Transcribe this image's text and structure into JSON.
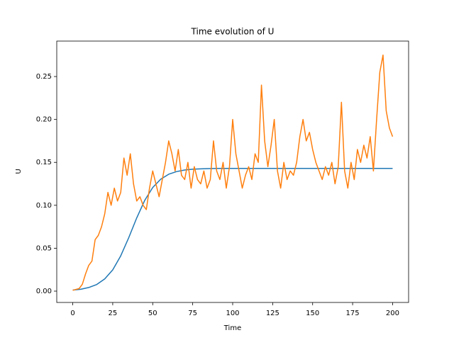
{
  "chart_data": {
    "type": "line",
    "title": "Time evolution of U",
    "x_label": "Time",
    "y_label": "U",
    "xlim": [
      -10,
      210
    ],
    "ylim": [
      -0.0132,
      0.2913
    ],
    "xticks": [
      0,
      25,
      50,
      75,
      100,
      125,
      150,
      175,
      200
    ],
    "yticks": [
      {
        "value": 0,
        "label": "0.00"
      },
      0.05,
      {
        "value": 0.1,
        "label": "0.10"
      },
      0.15,
      {
        "value": 0.2,
        "label": "0.20"
      },
      0.25
    ],
    "series": [
      {
        "color": "#1f77b4",
        "x": [
          0,
          5,
          10,
          15,
          20,
          25,
          30,
          35,
          40,
          45,
          50,
          55,
          60,
          65,
          70,
          75,
          80,
          85,
          90,
          95,
          100,
          105,
          110,
          115,
          120,
          125,
          130,
          135,
          140,
          145,
          150,
          155,
          160,
          165,
          170,
          175,
          180,
          185,
          190,
          195,
          200
        ],
        "values": [
          0.0012,
          0.0022,
          0.0042,
          0.0077,
          0.0142,
          0.0248,
          0.0411,
          0.0622,
          0.0853,
          0.1057,
          0.1207,
          0.1304,
          0.1362,
          0.1393,
          0.1411,
          0.142,
          0.1425,
          0.1428,
          0.143,
          0.143,
          0.143,
          0.143,
          0.143,
          0.143,
          0.143,
          0.143,
          0.143,
          0.143,
          0.143,
          0.143,
          0.143,
          0.143,
          0.143,
          0.143,
          0.143,
          0.143,
          0.143,
          0.143,
          0.143,
          0.143,
          0.143
        ]
      },
      {
        "color": "#ff7f0e",
        "x": [
          0,
          2,
          4,
          6,
          8,
          10,
          12,
          14,
          16,
          18,
          20,
          22,
          24,
          26,
          28,
          30,
          32,
          34,
          36,
          38,
          40,
          42,
          44,
          46,
          48,
          50,
          52,
          54,
          56,
          58,
          60,
          62,
          64,
          66,
          68,
          70,
          72,
          74,
          76,
          78,
          80,
          82,
          84,
          86,
          88,
          90,
          92,
          94,
          96,
          98,
          100,
          102,
          104,
          106,
          108,
          110,
          112,
          114,
          116,
          118,
          120,
          122,
          124,
          126,
          128,
          130,
          132,
          134,
          136,
          138,
          140,
          142,
          144,
          146,
          148,
          150,
          152,
          154,
          156,
          158,
          160,
          162,
          164,
          166,
          168,
          170,
          172,
          174,
          176,
          178,
          180,
          182,
          184,
          186,
          188,
          190,
          192,
          194,
          196,
          198,
          200
        ],
        "values": [
          0.001,
          0.002,
          0.003,
          0.008,
          0.02,
          0.03,
          0.035,
          0.06,
          0.065,
          0.075,
          0.09,
          0.115,
          0.1,
          0.12,
          0.105,
          0.115,
          0.155,
          0.135,
          0.16,
          0.125,
          0.105,
          0.11,
          0.1,
          0.095,
          0.12,
          0.14,
          0.125,
          0.11,
          0.13,
          0.15,
          0.175,
          0.16,
          0.14,
          0.165,
          0.135,
          0.13,
          0.15,
          0.12,
          0.145,
          0.13,
          0.125,
          0.14,
          0.12,
          0.13,
          0.175,
          0.14,
          0.13,
          0.15,
          0.12,
          0.145,
          0.2,
          0.16,
          0.14,
          0.12,
          0.135,
          0.145,
          0.13,
          0.16,
          0.15,
          0.24,
          0.175,
          0.145,
          0.17,
          0.2,
          0.14,
          0.12,
          0.15,
          0.13,
          0.14,
          0.135,
          0.15,
          0.18,
          0.2,
          0.175,
          0.185,
          0.165,
          0.15,
          0.14,
          0.13,
          0.145,
          0.135,
          0.15,
          0.125,
          0.145,
          0.22,
          0.14,
          0.12,
          0.15,
          0.13,
          0.165,
          0.15,
          0.17,
          0.155,
          0.18,
          0.14,
          0.2,
          0.255,
          0.275,
          0.21,
          0.19,
          0.18
        ]
      }
    ]
  }
}
